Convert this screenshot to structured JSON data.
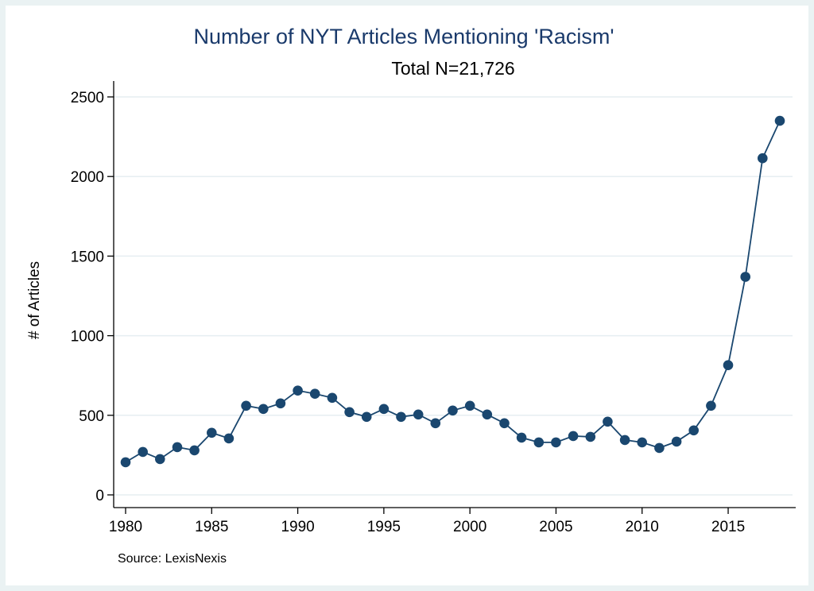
{
  "chart_data": {
    "type": "line",
    "title": "Number of NYT Articles Mentioning 'Racism'",
    "subtitle": "Total N=21,726",
    "xlabel": "",
    "ylabel": "# of Articles",
    "note": "Source: LexisNexis",
    "xlim": [
      1980,
      2018
    ],
    "ylim": [
      0,
      2500
    ],
    "xticks": [
      1980,
      1985,
      1990,
      1995,
      2000,
      2005,
      2010,
      2015
    ],
    "yticks": [
      0,
      500,
      1000,
      1500,
      2000,
      2500
    ],
    "grid": true,
    "legend": "none",
    "colors": {
      "series": "#1a476f",
      "title": "#1a3a6b",
      "background": "#eaf2f3",
      "grid": "#e6eef1"
    },
    "series": [
      {
        "x": [
          1980,
          1981,
          1982,
          1983,
          1984,
          1985,
          1986,
          1987,
          1988,
          1989,
          1990,
          1991,
          1992,
          1993,
          1994,
          1995,
          1996,
          1997,
          1998,
          1999,
          2000,
          2001,
          2002,
          2003,
          2004,
          2005,
          2006,
          2007,
          2008,
          2009,
          2010,
          2011,
          2012,
          2013,
          2014,
          2015,
          2016,
          2017,
          2018
        ],
        "values": [
          205,
          270,
          225,
          300,
          280,
          390,
          355,
          560,
          540,
          575,
          655,
          635,
          610,
          520,
          490,
          540,
          490,
          505,
          450,
          530,
          560,
          505,
          450,
          360,
          330,
          330,
          370,
          365,
          460,
          345,
          330,
          295,
          335,
          405,
          560,
          815,
          1370,
          2115,
          2350
        ]
      }
    ]
  }
}
